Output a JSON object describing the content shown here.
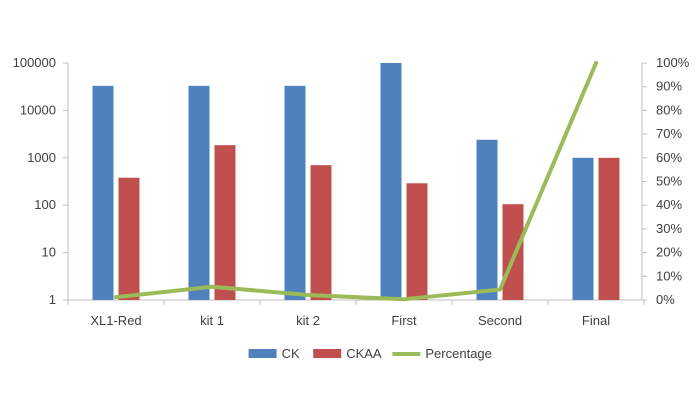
{
  "chart_data": {
    "type": "bar",
    "categories": [
      "XL1-Red",
      "kit 1",
      "kit 2",
      "First",
      "Second",
      "Final"
    ],
    "series": [
      {
        "name": "CK",
        "kind": "bar",
        "axis": "left",
        "color": "#4F81BD",
        "values": [
          33000,
          33000,
          33000,
          100000,
          2400,
          1000
        ]
      },
      {
        "name": "CKAA",
        "kind": "bar",
        "axis": "left",
        "color": "#C0504D",
        "values": [
          380,
          1850,
          700,
          290,
          105,
          1000
        ]
      },
      {
        "name": "Percentage",
        "kind": "line",
        "axis": "right",
        "color": "#9BBB59",
        "values": [
          0.012,
          0.056,
          0.021,
          0.003,
          0.044,
          1.0
        ]
      }
    ],
    "y_left": {
      "scale": "log",
      "ylim": [
        1,
        100000
      ],
      "ticks": [
        1,
        10,
        100,
        1000,
        10000,
        100000
      ],
      "tick_labels": [
        "1",
        "10",
        "100",
        "1000",
        "10000",
        "100000"
      ]
    },
    "y_right": {
      "scale": "linear",
      "ylim": [
        0,
        1
      ],
      "ticks": [
        0,
        0.1,
        0.2,
        0.3,
        0.4,
        0.5,
        0.6,
        0.7,
        0.8,
        0.9,
        1.0
      ],
      "tick_labels": [
        "0%",
        "10%",
        "20%",
        "30%",
        "40%",
        "50%",
        "60%",
        "70%",
        "80%",
        "90%",
        "100%"
      ]
    },
    "grid": false,
    "legend": "bottom",
    "title": "",
    "xlabel": "",
    "ylabel": ""
  }
}
